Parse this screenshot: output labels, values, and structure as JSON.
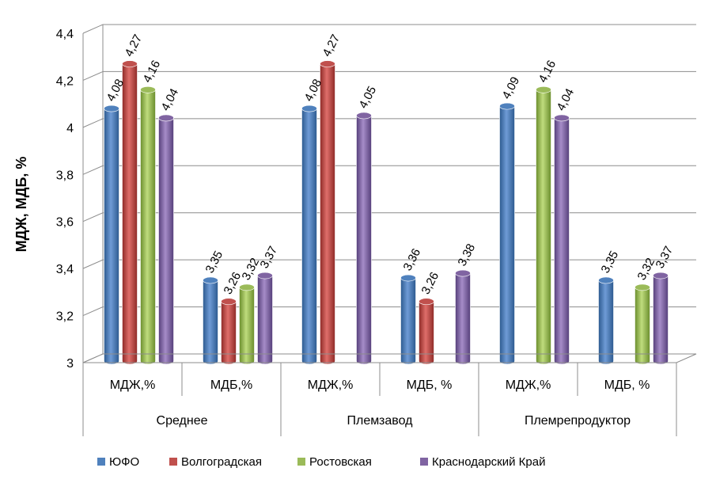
{
  "chart_data": {
    "type": "bar",
    "title": "",
    "xlabel": "",
    "ylabel": "МДЖ, МДБ, %",
    "ylim": [
      3,
      4.4
    ],
    "yticks": [
      "3",
      "3,2",
      "3,4",
      "3,6",
      "3,8",
      "4",
      "4,2",
      "4,4"
    ],
    "ytick_values": [
      3,
      3.2,
      3.4,
      3.6,
      3.8,
      4,
      4.2,
      4.4
    ],
    "grid": true,
    "legend_position": "bottom",
    "groups": [
      {
        "label": "Среднее",
        "categories": [
          "МДЖ,%",
          "МДБ,%"
        ]
      },
      {
        "label": "Племзавод",
        "categories": [
          "МДЖ,%",
          "МДБ, %"
        ]
      },
      {
        "label": "Племрепродуктор",
        "categories": [
          "МДЖ,%",
          "МДБ, %"
        ]
      }
    ],
    "series": [
      {
        "name": "ЮФО",
        "color": "#4F81BD",
        "values": [
          4.08,
          3.35,
          4.08,
          3.36,
          4.09,
          3.35
        ],
        "labels": [
          "4,08",
          "3,35",
          "4,08",
          "3,36",
          "4,09",
          "3,35"
        ]
      },
      {
        "name": "Волгоградская",
        "color": "#C0504D",
        "values": [
          4.27,
          3.26,
          4.27,
          3.26,
          null,
          null
        ],
        "labels": [
          "4,27",
          "3,26",
          "4,27",
          "3,26",
          "",
          ""
        ]
      },
      {
        "name": "Ростовская",
        "color": "#9BBB59",
        "values": [
          4.16,
          3.32,
          null,
          null,
          4.16,
          3.32
        ],
        "labels": [
          "4,16",
          "3,32",
          "",
          "",
          "4,16",
          "3,32"
        ]
      },
      {
        "name": "Краснодарский Край",
        "color": "#8064A2",
        "values": [
          4.04,
          3.37,
          4.05,
          3.38,
          4.04,
          3.37
        ],
        "labels": [
          "4,04",
          "3,37",
          "4,05",
          "3,38",
          "4,04",
          "3,37"
        ]
      }
    ]
  }
}
